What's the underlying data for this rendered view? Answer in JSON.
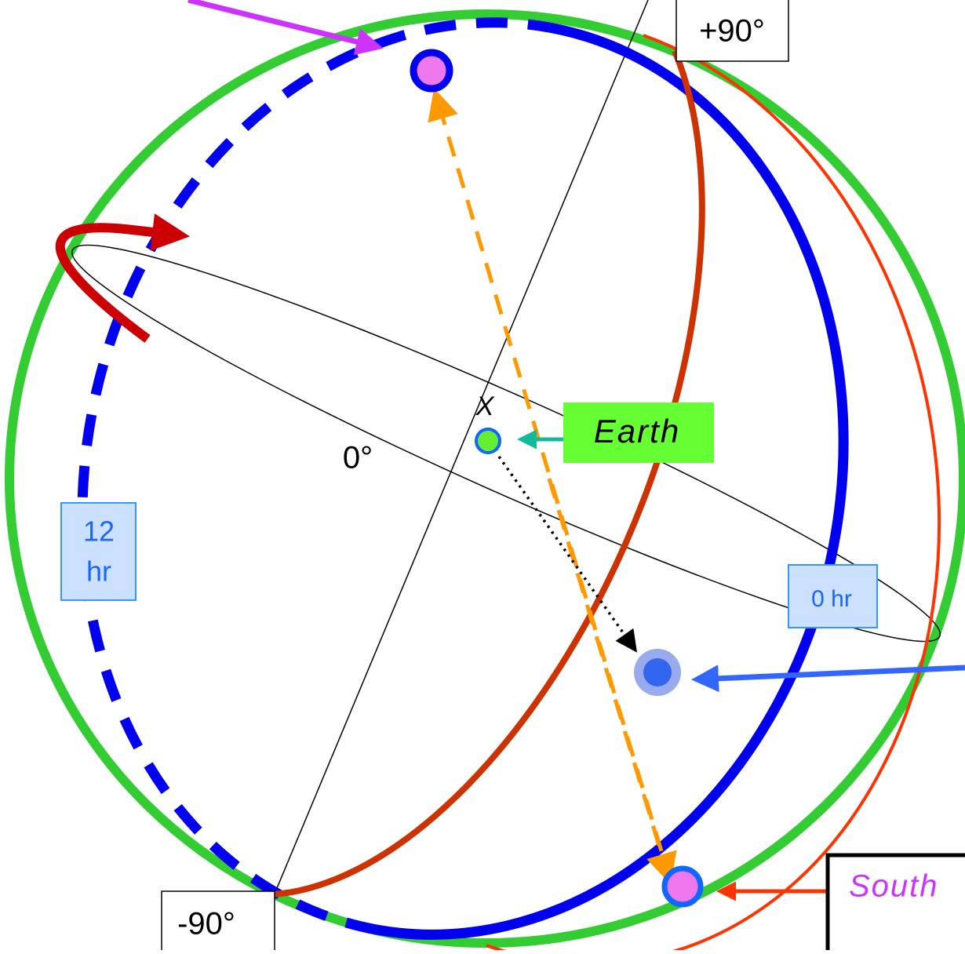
{
  "labels": {
    "plus_90": "+90°",
    "minus_90": "-90°",
    "zero_deg": "0°",
    "x_mark": "X",
    "earth": "Earth",
    "twelve_hr": [
      "12",
      "hr"
    ],
    "zero_hr": "0 hr",
    "south": "South"
  }
}
